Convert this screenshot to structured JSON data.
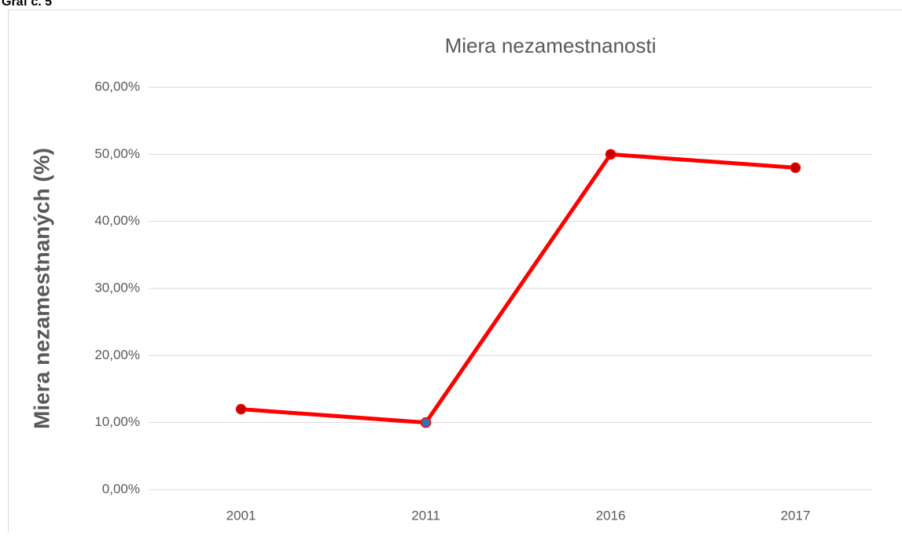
{
  "caption": "Graf č. 5",
  "chart_data": {
    "type": "line",
    "title": "Miera nezamestnanosti",
    "y_label": "Miera nezamestnaných (%)",
    "categories": [
      "2001",
      "2011",
      "2016",
      "2017"
    ],
    "series": [
      {
        "color": "#ff0000",
        "marker_colors": [
          "#c00000",
          "#2e75b6",
          "#c00000",
          "#c00000"
        ],
        "values": [
          12,
          10,
          50,
          48
        ]
      }
    ],
    "ylim": [
      0,
      60
    ],
    "yticks": [
      {
        "value": 0,
        "label": "0,00%"
      },
      {
        "value": 10,
        "label": "10,00%"
      },
      {
        "value": 20,
        "label": "20,00%"
      },
      {
        "value": 30,
        "label": "30,00%"
      },
      {
        "value": 40,
        "label": "40,00%"
      },
      {
        "value": 50,
        "label": "50,00%"
      },
      {
        "value": 60,
        "label": "60,00%"
      }
    ],
    "grid": true
  }
}
